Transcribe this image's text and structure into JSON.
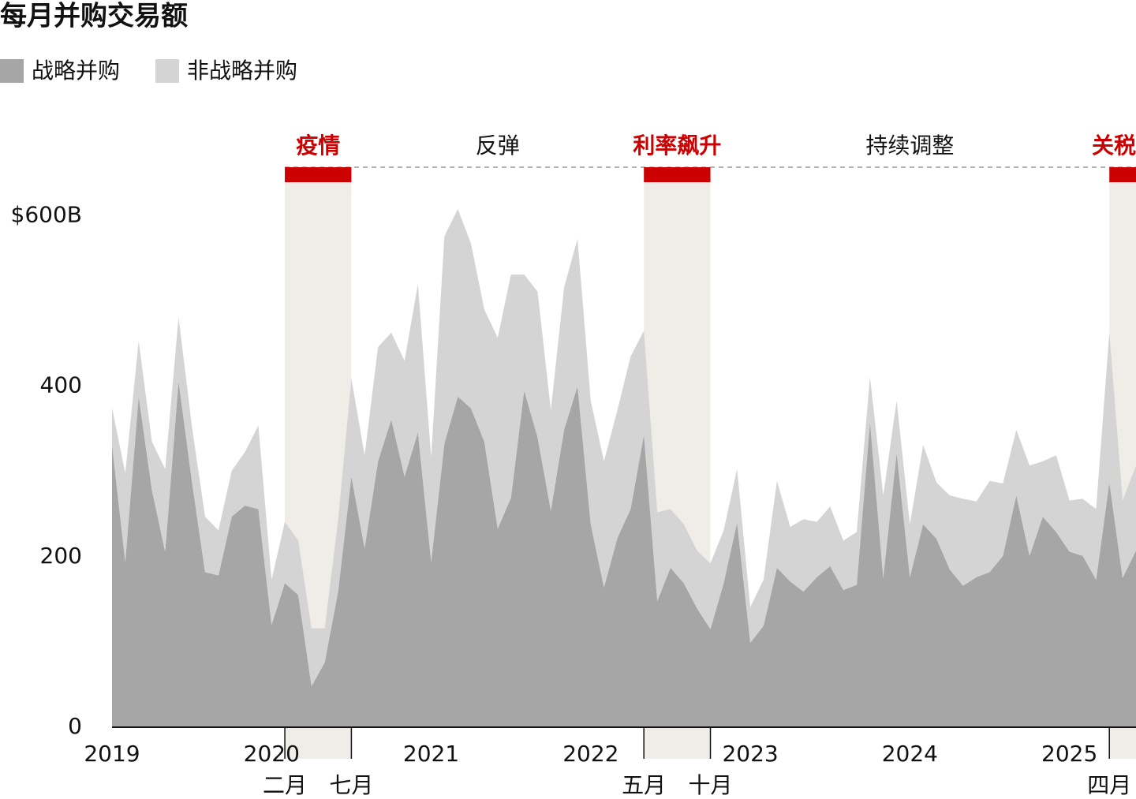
{
  "chart_data": {
    "type": "stacked-area",
    "title": "每月并购交易额",
    "x": [
      2019,
      2019.083,
      2019.167,
      2019.25,
      2019.333,
      2019.417,
      2019.5,
      2019.583,
      2019.667,
      2019.75,
      2019.833,
      2019.917,
      2020,
      2020.083,
      2020.167,
      2020.25,
      2020.333,
      2020.417,
      2020.5,
      2020.583,
      2020.667,
      2020.75,
      2020.833,
      2020.917,
      2021,
      2021.083,
      2021.167,
      2021.25,
      2021.333,
      2021.417,
      2021.5,
      2021.583,
      2021.667,
      2021.75,
      2021.833,
      2021.917,
      2022,
      2022.083,
      2022.167,
      2022.25,
      2022.333,
      2022.417,
      2022.5,
      2022.583,
      2022.667,
      2022.75,
      2022.833,
      2022.917,
      2023,
      2023.083,
      2023.167,
      2023.25,
      2023.333,
      2023.417,
      2023.5,
      2023.583,
      2023.667,
      2023.75,
      2023.833,
      2023.917,
      2024,
      2024.083,
      2024.167,
      2024.25,
      2024.333,
      2024.417,
      2024.5,
      2024.583,
      2024.667,
      2024.75,
      2024.833,
      2024.917,
      2025,
      2025.083,
      2025.167,
      2025.25,
      2025.333,
      2025.417
    ],
    "series": [
      {
        "name": "战略并购",
        "color": "#a6a6a6",
        "values": [
          331,
          194,
          388,
          278,
          206,
          406,
          289,
          182,
          178,
          247,
          260,
          256,
          120,
          169,
          155,
          48,
          76,
          159,
          294,
          210,
          312,
          361,
          294,
          346,
          194,
          333,
          388,
          374,
          335,
          233,
          269,
          395,
          340,
          254,
          349,
          400,
          238,
          164,
          222,
          256,
          343,
          148,
          187,
          169,
          139,
          115,
          169,
          240,
          99,
          119,
          187,
          171,
          159,
          176,
          189,
          161,
          167,
          358,
          175,
          322,
          176,
          238,
          221,
          185,
          166,
          176,
          182,
          201,
          272,
          201,
          247,
          229,
          206,
          201,
          173,
          287,
          175,
          207
        ]
      },
      {
        "name": "非战略并购",
        "color": "#d4d4d4",
        "values": [
          44,
          104,
          65,
          57,
          97,
          75,
          65,
          65,
          53,
          54,
          63,
          98,
          53,
          72,
          64,
          68,
          40,
          84,
          115,
          109,
          134,
          102,
          136,
          174,
          123,
          243,
          220,
          193,
          155,
          224,
          262,
          136,
          171,
          118,
          167,
          173,
          145,
          148,
          150,
          179,
          122,
          104,
          69,
          69,
          68,
          77,
          62,
          63,
          42,
          54,
          102,
          64,
          85,
          65,
          70,
          58,
          62,
          53,
          97,
          61,
          62,
          93,
          66,
          87,
          102,
          89,
          107,
          85,
          77,
          106,
          65,
          90,
          60,
          67,
          83,
          176,
          91,
          100
        ]
      }
    ],
    "xlim": [
      2019,
      2025.417
    ],
    "xticks": [
      2019,
      2020,
      2021,
      2022,
      2023,
      2024,
      2025
    ],
    "ylim": [
      0,
      620
    ],
    "yticks": [
      0,
      200,
      400,
      {
        "value": 600,
        "label": "$600B"
      }
    ],
    "grid": false,
    "periods": [
      {
        "label": "疫情",
        "highlight": true,
        "start": {
          "value": 2020.083,
          "label": "二月"
        },
        "end": {
          "value": 2020.5,
          "label": "七月"
        }
      },
      {
        "label": "反弹",
        "highlight": false,
        "start": 2020.5,
        "end": 2022.333
      },
      {
        "label": "利率飙升",
        "highlight": true,
        "start": {
          "value": 2022.333,
          "label": "五月"
        },
        "end": {
          "value": 2022.75,
          "label": "十月"
        }
      },
      {
        "label": "持续调整",
        "highlight": false,
        "start": 2022.75,
        "end": 2025.25
      },
      {
        "label": "关税",
        "highlight": true,
        "start": {
          "value": 2025.25,
          "label": "四月"
        },
        "end": 2025.417
      }
    ],
    "highlight_color": "#cc0000",
    "band_color": "#f0ede8"
  }
}
